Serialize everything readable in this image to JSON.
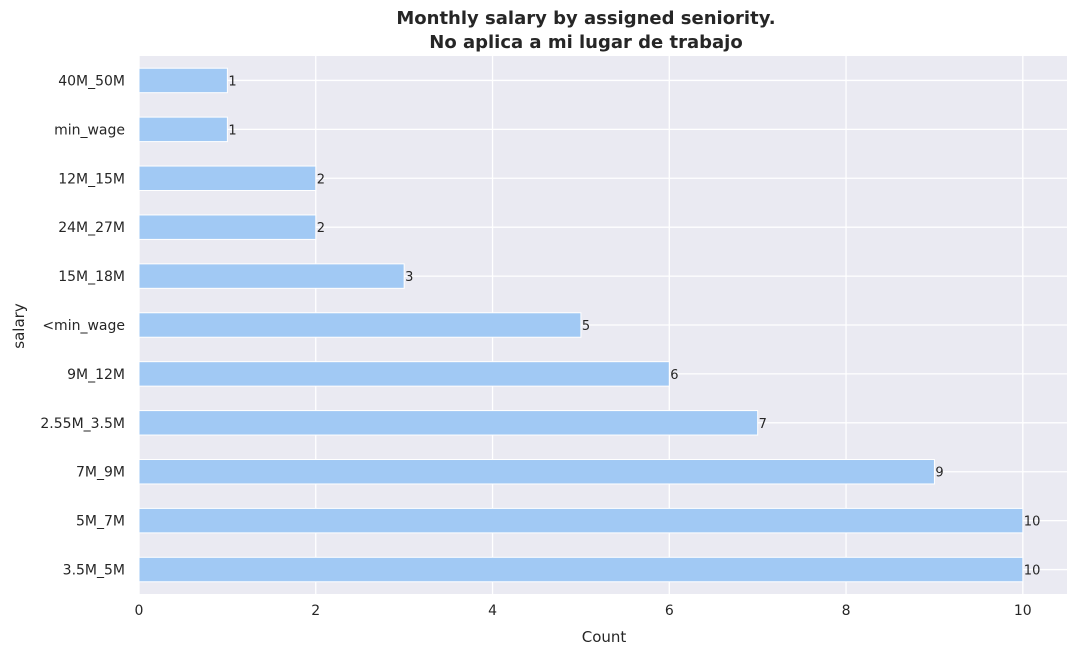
{
  "chart_data": {
    "type": "bar",
    "orientation": "horizontal",
    "title": "Monthly salary by assigned seniority.",
    "subtitle": "No aplica a mi lugar de trabajo",
    "xlabel": "Count",
    "ylabel": "salary",
    "categories": [
      "40M_50M",
      "min_wage",
      "12M_15M",
      "24M_27M",
      "15M_18M",
      "<min_wage",
      "9M_12M",
      "2.55M_3.5M",
      "7M_9M",
      "5M_7M",
      "3.5M_5M"
    ],
    "values": [
      1,
      1,
      2,
      2,
      3,
      5,
      6,
      7,
      9,
      10,
      10
    ],
    "xlim": [
      0,
      10.5
    ],
    "xticks": [
      0,
      2,
      4,
      6,
      8,
      10
    ],
    "grid": true,
    "bar_color": "#a1c9f4",
    "background_color": "#eaeaf2",
    "grid_color": "#ffffff",
    "text_color": "#262626",
    "data_labels": true
  }
}
